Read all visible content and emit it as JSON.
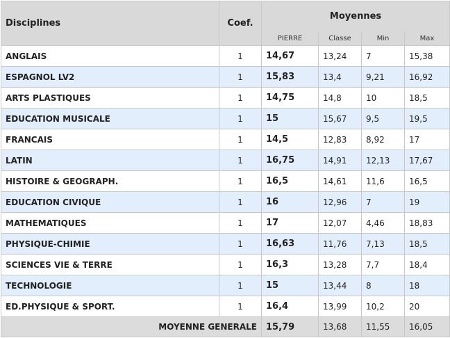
{
  "headers": {
    "disciplines": "Disciplines",
    "coef": "Coef.",
    "moyennes": "Moyennes",
    "pierre": "PIERRE",
    "classe": "Classe",
    "min": "Min",
    "max": "Max"
  },
  "rows": [
    {
      "discipline": "ANGLAIS",
      "coef": "1",
      "pierre": "14,67",
      "classe": "13,24",
      "min": "7",
      "max": "15,38"
    },
    {
      "discipline": "ESPAGNOL LV2",
      "coef": "1",
      "pierre": "15,83",
      "classe": "13,4",
      "min": "9,21",
      "max": "16,92"
    },
    {
      "discipline": "ARTS PLASTIQUES",
      "coef": "1",
      "pierre": "14,75",
      "classe": "14,8",
      "min": "10",
      "max": "18,5"
    },
    {
      "discipline": "EDUCATION MUSICALE",
      "coef": "1",
      "pierre": "15",
      "classe": "15,67",
      "min": "9,5",
      "max": "19,5"
    },
    {
      "discipline": "FRANCAIS",
      "coef": "1",
      "pierre": "14,5",
      "classe": "12,83",
      "min": "8,92",
      "max": "17"
    },
    {
      "discipline": "LATIN",
      "coef": "1",
      "pierre": "16,75",
      "classe": "14,91",
      "min": "12,13",
      "max": "17,67"
    },
    {
      "discipline": "HISTOIRE & GEOGRAPH.",
      "coef": "1",
      "pierre": "16,5",
      "classe": "14,61",
      "min": "11,6",
      "max": "16,5"
    },
    {
      "discipline": "EDUCATION CIVIQUE",
      "coef": "1",
      "pierre": "16",
      "classe": "12,96",
      "min": "7",
      "max": "19"
    },
    {
      "discipline": "MATHEMATIQUES",
      "coef": "1",
      "pierre": "17",
      "classe": "12,07",
      "min": "4,46",
      "max": "18,83"
    },
    {
      "discipline": "PHYSIQUE-CHIMIE",
      "coef": "1",
      "pierre": "16,63",
      "classe": "11,76",
      "min": "7,13",
      "max": "18,5"
    },
    {
      "discipline": "SCIENCES VIE & TERRE",
      "coef": "1",
      "pierre": "16,3",
      "classe": "13,28",
      "min": "7,7",
      "max": "18,4"
    },
    {
      "discipline": "TECHNOLOGIE",
      "coef": "1",
      "pierre": "15",
      "classe": "13,44",
      "min": "8",
      "max": "18"
    },
    {
      "discipline": "ED.PHYSIQUE & SPORT.",
      "coef": "1",
      "pierre": "16,4",
      "classe": "13,99",
      "min": "10,2",
      "max": "20"
    }
  ],
  "footer": {
    "label": "MOYENNE GENERALE",
    "pierre": "15,79",
    "classe": "13,68",
    "min": "11,55",
    "max": "16,05"
  }
}
